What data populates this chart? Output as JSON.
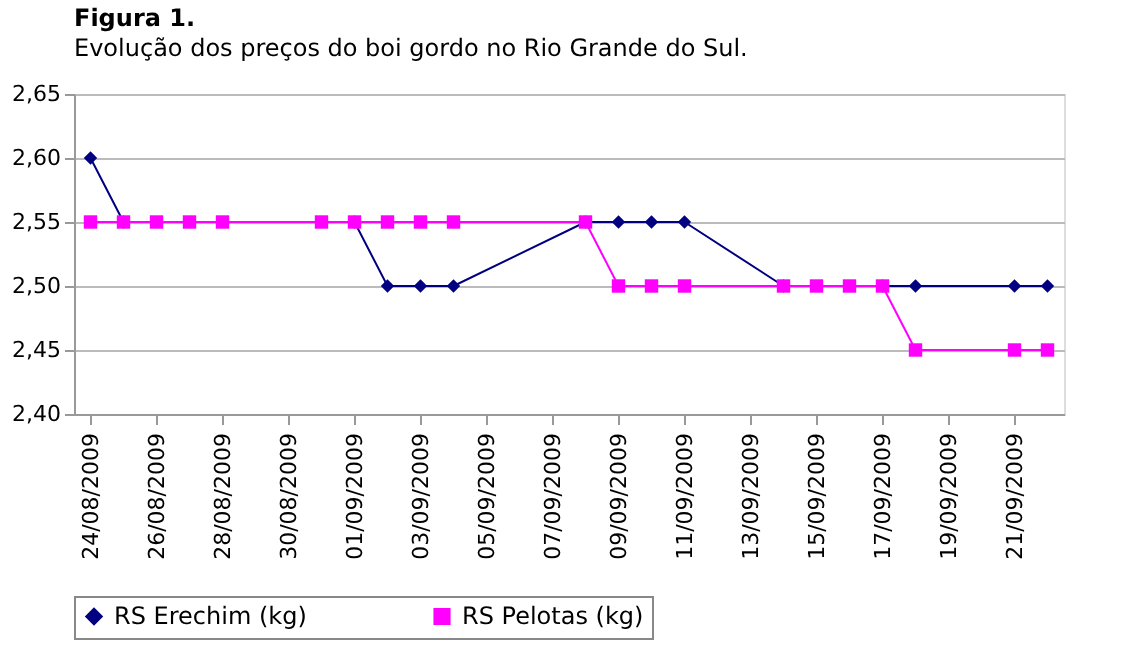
{
  "chart_data": {
    "type": "line",
    "title": "Figura 1.",
    "subtitle": "Evolução dos preços do boi gordo no Rio Grande do Sul.",
    "series": [
      {
        "name": "RS Erechim (kg)",
        "color": "#000080",
        "marker": "diamond",
        "x": [
          "2009-08-24",
          "2009-08-25",
          "2009-08-26",
          "2009-08-27",
          "2009-08-28",
          "2009-08-31",
          "2009-09-01",
          "2009-09-02",
          "2009-09-03",
          "2009-09-04",
          "2009-09-08",
          "2009-09-09",
          "2009-09-10",
          "2009-09-11",
          "2009-09-14",
          "2009-09-15",
          "2009-09-16",
          "2009-09-17",
          "2009-09-18",
          "2009-09-21",
          "2009-09-22"
        ],
        "values": [
          2.6,
          2.55,
          null,
          null,
          null,
          null,
          2.55,
          2.5,
          2.5,
          2.5,
          2.55,
          2.55,
          2.55,
          2.55,
          2.5,
          null,
          null,
          2.5,
          2.5,
          2.5,
          2.5
        ]
      },
      {
        "name": "RS Pelotas (kg)",
        "color": "#ff00ff",
        "marker": "square",
        "x": [
          "2009-08-24",
          "2009-08-25",
          "2009-08-26",
          "2009-08-27",
          "2009-08-28",
          "2009-08-31",
          "2009-09-01",
          "2009-09-02",
          "2009-09-03",
          "2009-09-04",
          "2009-09-08",
          "2009-09-09",
          "2009-09-10",
          "2009-09-11",
          "2009-09-14",
          "2009-09-15",
          "2009-09-16",
          "2009-09-17",
          "2009-09-18",
          "2009-09-21",
          "2009-09-22"
        ],
        "values": [
          2.55,
          2.55,
          2.55,
          2.55,
          2.55,
          2.55,
          2.55,
          2.55,
          2.55,
          2.55,
          2.55,
          2.5,
          2.5,
          2.5,
          2.5,
          2.5,
          2.5,
          2.5,
          2.45,
          2.45,
          2.45
        ]
      }
    ],
    "xlim": [
      "2009-08-23T12:00",
      "2009-09-22T12:00"
    ],
    "xticks": [
      {
        "value": "2009-08-24",
        "label": "24/08/2009"
      },
      {
        "value": "2009-08-26",
        "label": "26/08/2009"
      },
      {
        "value": "2009-08-28",
        "label": "28/08/2009"
      },
      {
        "value": "2009-08-30",
        "label": "30/08/2009"
      },
      {
        "value": "2009-09-01",
        "label": "01/09/2009"
      },
      {
        "value": "2009-09-03",
        "label": "03/09/2009"
      },
      {
        "value": "2009-09-05",
        "label": "05/09/2009"
      },
      {
        "value": "2009-09-07",
        "label": "07/09/2009"
      },
      {
        "value": "2009-09-09",
        "label": "09/09/2009"
      },
      {
        "value": "2009-09-11",
        "label": "11/09/2009"
      },
      {
        "value": "2009-09-13",
        "label": "13/09/2009"
      },
      {
        "value": "2009-09-15",
        "label": "15/09/2009"
      },
      {
        "value": "2009-09-17",
        "label": "17/09/2009"
      },
      {
        "value": "2009-09-19",
        "label": "19/09/2009"
      },
      {
        "value": "2009-09-21",
        "label": "21/09/2009"
      }
    ],
    "ylim": [
      2.4,
      2.65
    ],
    "yticks": [
      {
        "value": 2.4,
        "label": "2,40"
      },
      {
        "value": 2.45,
        "label": "2,45"
      },
      {
        "value": 2.5,
        "label": "2,50"
      },
      {
        "value": 2.55,
        "label": "2,55"
      },
      {
        "value": 2.6,
        "label": "2,60"
      },
      {
        "value": 2.65,
        "label": "2,65"
      }
    ],
    "grid": "y",
    "legend": "bottom",
    "line_style": "solid"
  }
}
